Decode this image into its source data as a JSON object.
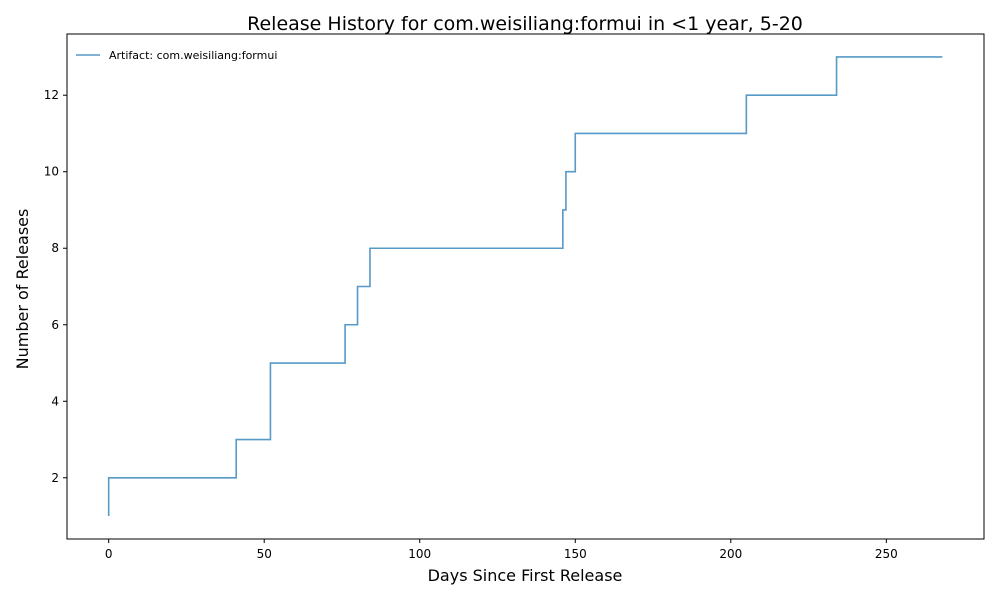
{
  "chart_data": {
    "type": "line",
    "step": "post",
    "title": "Release History for com.weisiliang:formui in <1 year, 5-20",
    "xlabel": "Days Since First Release",
    "ylabel": "Number of Releases",
    "xlim": [
      -13.4,
      281.4
    ],
    "ylim": [
      0.4,
      13.6
    ],
    "xticks": [
      0,
      50,
      100,
      150,
      200,
      250
    ],
    "yticks": [
      2,
      4,
      6,
      8,
      10,
      12
    ],
    "grid": false,
    "legend": "top-left",
    "series": [
      {
        "name": "Artifact: com.weisiliang:formui",
        "color": "#1f77b4",
        "x": [
          0,
          0,
          41,
          52,
          76,
          80,
          84,
          146,
          147,
          150,
          205,
          234,
          268
        ],
        "y": [
          1,
          2,
          3,
          5,
          6,
          7,
          8,
          9,
          10,
          11,
          12,
          13,
          13
        ]
      }
    ]
  }
}
